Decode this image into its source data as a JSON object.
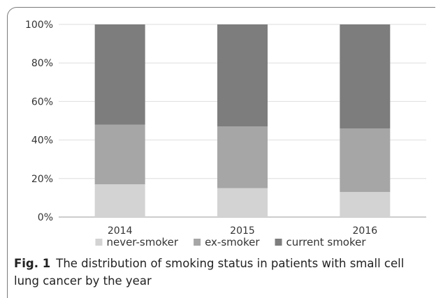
{
  "chart_data": {
    "type": "bar",
    "stacked": true,
    "categories": [
      "2014",
      "2015",
      "2016"
    ],
    "series": [
      {
        "name": "never-smoker",
        "values": [
          17,
          15,
          13
        ],
        "color": "#d3d3d3"
      },
      {
        "name": "ex-smoker",
        "values": [
          31,
          32,
          33
        ],
        "color": "#a6a6a6"
      },
      {
        "name": "current smoker",
        "values": [
          52,
          53,
          54
        ],
        "color": "#7d7d7d"
      }
    ],
    "ylim": [
      0,
      100
    ],
    "yticks": [
      "0%",
      "20%",
      "40%",
      "60%",
      "80%",
      "100%"
    ],
    "grid": true,
    "legend_position": "bottom"
  },
  "caption": {
    "label": "Fig. 1",
    "text": "The distribution of smoking status in patients with small cell lung cancer by the year"
  }
}
